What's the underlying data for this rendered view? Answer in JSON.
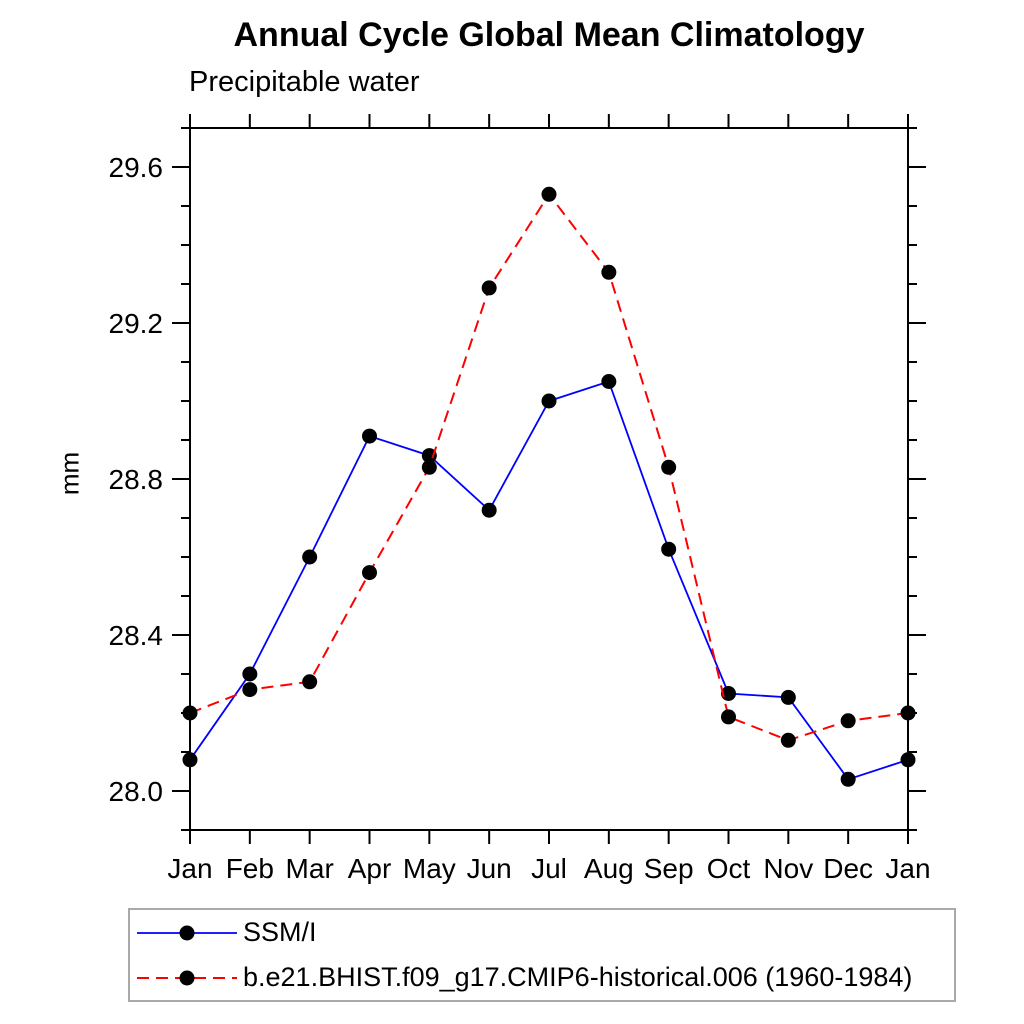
{
  "title": "Annual Cycle Global Mean Climatology",
  "subtitle": "Precipitable water",
  "chart_data": {
    "type": "line",
    "title": "Annual Cycle Global Mean Climatology",
    "subtitle": "Precipitable water",
    "xlabel": "",
    "ylabel": "mm",
    "categories": [
      "Jan",
      "Feb",
      "Mar",
      "Apr",
      "May",
      "Jun",
      "Jul",
      "Aug",
      "Sep",
      "Oct",
      "Nov",
      "Dec",
      "Jan"
    ],
    "ylim": [
      27.9,
      29.7
    ],
    "y_major_ticks": [
      28.0,
      28.4,
      28.8,
      29.2,
      29.6
    ],
    "y_minor_step": 0.1,
    "grid": false,
    "legend_position": "bottom-left boxed",
    "frame_color": "#000000",
    "marker_color": "#000000",
    "series": [
      {
        "name": "SSM/I",
        "color": "#0000ff",
        "line_style": "solid",
        "marker": "circle",
        "values": [
          28.08,
          28.3,
          28.6,
          28.91,
          28.86,
          28.72,
          29.0,
          29.05,
          28.62,
          28.25,
          28.24,
          28.03,
          28.08
        ]
      },
      {
        "name": "b.e21.BHIST.f09_g17.CMIP6-historical.006 (1960-1984)",
        "color": "#ff0000",
        "line_style": "dashed",
        "marker": "circle",
        "values": [
          28.2,
          28.26,
          28.28,
          28.56,
          28.83,
          29.29,
          29.53,
          29.33,
          28.83,
          28.19,
          28.13,
          28.18,
          28.2
        ]
      }
    ]
  }
}
